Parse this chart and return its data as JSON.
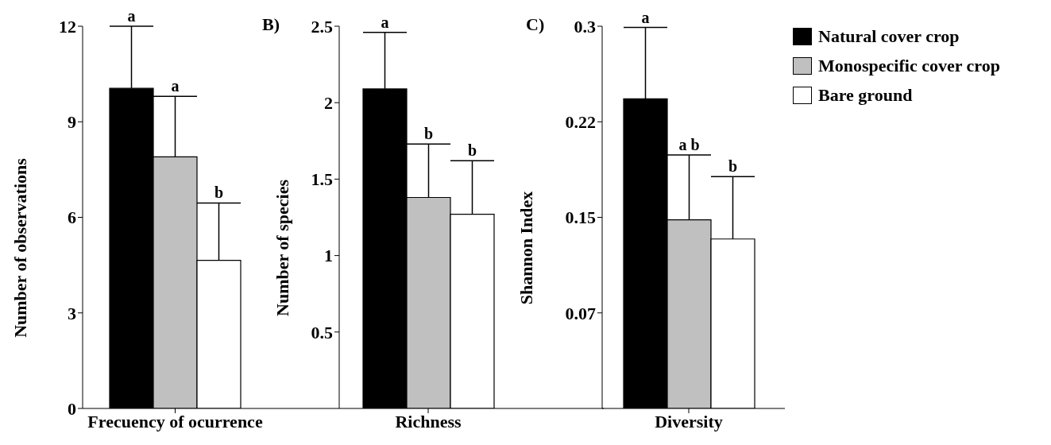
{
  "chart_data": [
    {
      "type": "bar",
      "ylabel": "Number of observations",
      "categories": [
        "Frecuency of ocurrence"
      ],
      "ylim": [
        0,
        12
      ],
      "yticks": [
        0,
        3,
        6,
        9,
        12
      ],
      "series": [
        {
          "color": "#000000",
          "values": [
            10.05
          ],
          "errors": [
            [
              10.05,
              12
            ]
          ]
        },
        {
          "color": "#c0c0c0",
          "values": [
            7.9
          ],
          "errors": [
            [
              7.9,
              9.8
            ]
          ]
        },
        {
          "color": "#ffffff",
          "values": [
            4.65
          ],
          "errors": [
            [
              4.65,
              6.45
            ]
          ]
        }
      ],
      "annotations": [
        "a",
        {
          "text": "a",
          "x": "Frecuency of ocurrence",
          "y": 9.8
        },
        "b"
      ]
    },
    {
      "type": "bar",
      "title": "B)",
      "ylabel": "Number of species",
      "categories": [
        "Richness"
      ],
      "ylim": [
        0,
        2.5
      ],
      "yticks": [
        0.5,
        1,
        1.5,
        2,
        2.5
      ],
      "series": [
        {
          "color": "#000000",
          "values": [
            2.09
          ],
          "errors": [
            [
              2.09,
              2.46
            ]
          ]
        },
        {
          "color": "#c0c0c0",
          "values": [
            1.38
          ],
          "errors": [
            [
              1.38,
              1.73
            ]
          ]
        },
        {
          "color": "#ffffff",
          "values": [
            1.27
          ],
          "errors": [
            [
              1.27,
              1.62
            ]
          ]
        }
      ],
      "annotations": [
        "a",
        {
          "text": "b",
          "x": "Richness",
          "y": 1.73
        },
        {
          "text": "b",
          "x": "Richness",
          "y": 1.62
        }
      ]
    },
    {
      "type": "bar",
      "title": "C)",
      "ylabel": "Shannon Index",
      "categories": [
        "Diversity"
      ],
      "ylim": [
        0,
        0.3
      ],
      "yticks": [
        {
          "value": 0.075,
          "label": "0.07"
        },
        0.15,
        {
          "value": 0.225,
          "label": "0.22"
        },
        0.3
      ],
      "legend": "right",
      "series": [
        {
          "name": "Natural cover crop",
          "color": "#000000",
          "values": [
            0.243
          ],
          "errors": [
            [
              0.243,
              0.299
            ]
          ]
        },
        {
          "name": "Monospecific cover crop",
          "color": "#c0c0c0",
          "values": [
            0.148
          ],
          "errors": [
            [
              0.148,
              0.199
            ]
          ]
        },
        {
          "name": "Bare ground",
          "color": "#ffffff",
          "values": [
            0.133
          ],
          "errors": [
            [
              0.133,
              0.182
            ]
          ]
        }
      ],
      "annotations": [
        "a",
        "a b",
        {
          "text": "b",
          "x": "Diversity",
          "y": 0.182
        }
      ]
    }
  ]
}
